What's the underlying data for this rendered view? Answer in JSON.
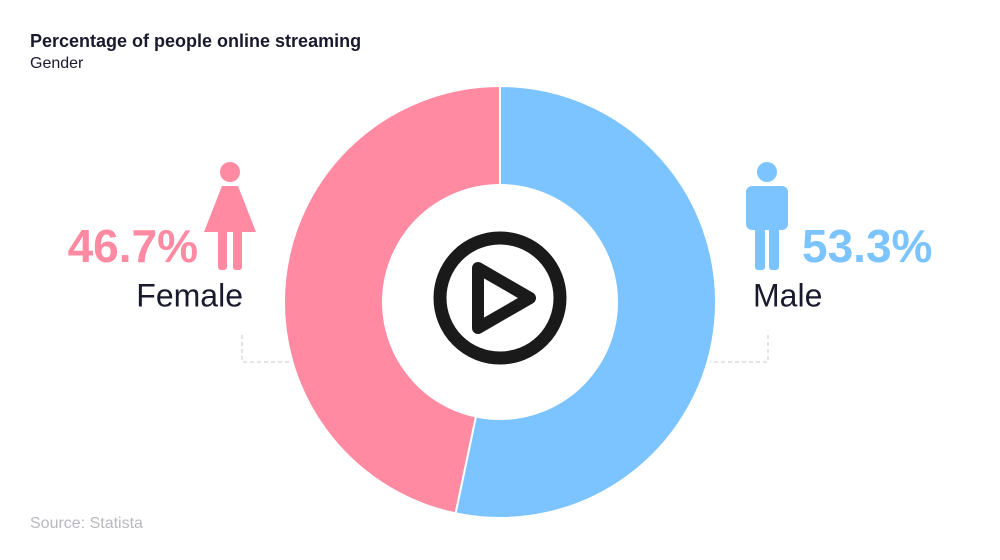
{
  "chart_data": {
    "type": "donut",
    "title": "Percentage of people online streaming",
    "subtitle": "Gender",
    "categories": [
      "Male",
      "Female"
    ],
    "values": [
      53.3,
      46.7
    ],
    "value_labels": [
      "53.3%",
      "46.7%"
    ],
    "colors": [
      "#7cc4ff",
      "#ff8aa1"
    ],
    "source": "Source: Statista"
  }
}
